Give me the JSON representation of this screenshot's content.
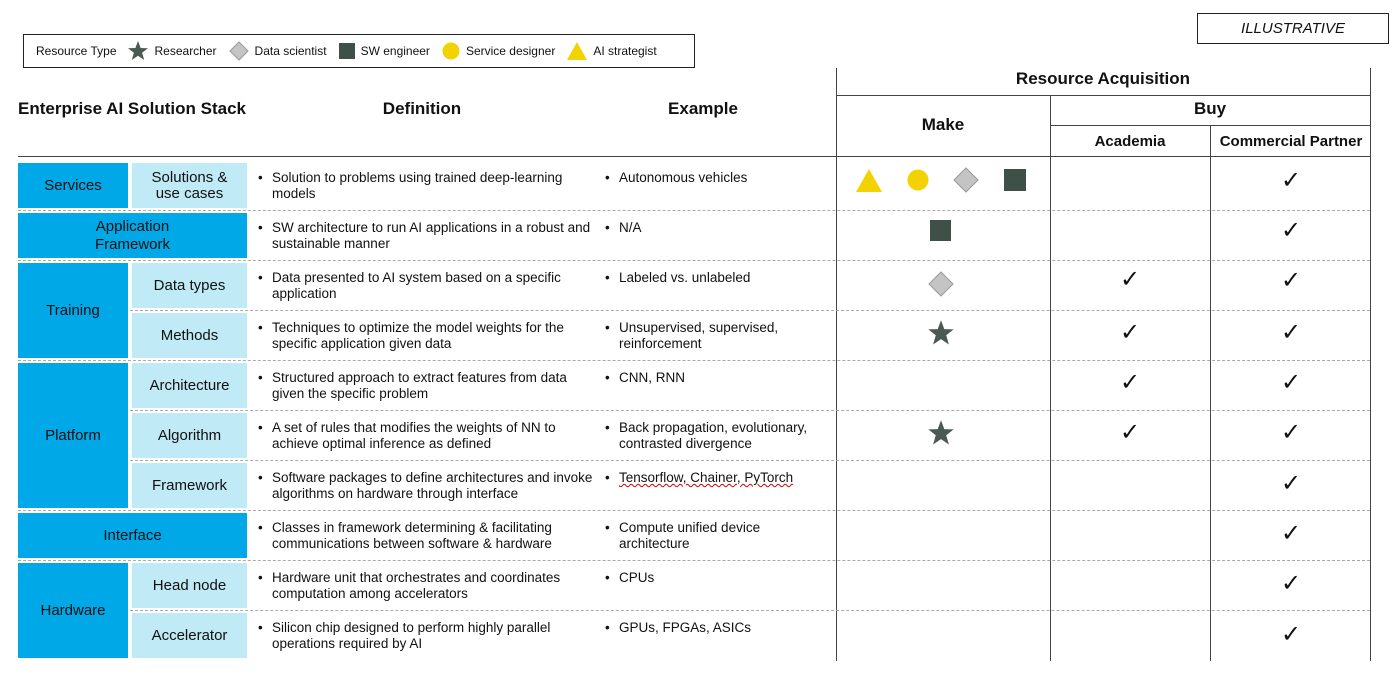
{
  "badge": "ILLUSTRATIVE",
  "legend": {
    "label": "Resource Type",
    "items": [
      {
        "name": "Researcher",
        "shape": "star",
        "color": "#4a5a52"
      },
      {
        "name": "Data scientist",
        "shape": "diamond",
        "color": "#b8b8b8"
      },
      {
        "name": "SW engineer",
        "shape": "square",
        "color": "#3f5048"
      },
      {
        "name": "Service designer",
        "shape": "circle",
        "color": "#f2d200"
      },
      {
        "name": "AI strategist",
        "shape": "triangle",
        "color": "#f2d200"
      }
    ]
  },
  "headers": {
    "stack": "Enterprise AI Solution Stack",
    "definition": "Definition",
    "example": "Example",
    "acquisition": "Resource Acquisition",
    "make": "Make",
    "buy": "Buy",
    "academia": "Academia",
    "commercial": "Commercial Partner"
  },
  "groups": {
    "services": "Services",
    "app_framework": "Application Framework",
    "training": "Training",
    "platform": "Platform",
    "interface": "Interface",
    "hardware": "Hardware"
  },
  "rows": [
    {
      "sub": "Solutions & use cases",
      "definition": "Solution to problems using trained deep-learning models",
      "example": "Autonomous vehicles",
      "make": [
        "triangle",
        "circle",
        "diamond",
        "square"
      ],
      "academia": false,
      "commercial": true
    },
    {
      "sub": "",
      "definition": "SW architecture to run AI applications in a robust and sustainable manner",
      "example": "N/A",
      "make": [
        "square"
      ],
      "academia": false,
      "commercial": true
    },
    {
      "sub": "Data types",
      "definition": "Data presented to AI system based on a specific application",
      "example": "Labeled vs. unlabeled",
      "make": [
        "diamond"
      ],
      "academia": true,
      "commercial": true
    },
    {
      "sub": "Methods",
      "definition": "Techniques to optimize the model weights for the specific application given data",
      "example": "Unsupervised, supervised, reinforcement",
      "make": [
        "star"
      ],
      "academia": true,
      "commercial": true
    },
    {
      "sub": "Architecture",
      "definition": "Structured approach to extract features from data given the specific problem",
      "example": "CNN, RNN",
      "make": [],
      "academia": true,
      "commercial": true
    },
    {
      "sub": "Algorithm",
      "definition": "A set of rules that modifies the weights of NN to achieve optimal inference as defined",
      "example": "Back propagation, evolutionary, contrasted divergence",
      "make": [
        "star"
      ],
      "academia": true,
      "commercial": true
    },
    {
      "sub": "Framework",
      "definition": "Software packages to define architectures and invoke algorithms on hardware through interface",
      "example": "Tensorflow, Chainer, PyTorch",
      "make": [],
      "academia": false,
      "commercial": true
    },
    {
      "sub": "",
      "definition": "Classes in framework determining & facilitating communications between software & hardware",
      "example": "Compute unified device architecture",
      "make": [],
      "academia": false,
      "commercial": true
    },
    {
      "sub": "Head node",
      "definition": "Hardware unit that orchestrates and coordinates computation among accelerators",
      "example": "CPUs",
      "make": [],
      "academia": false,
      "commercial": true
    },
    {
      "sub": "Accelerator",
      "definition": "Silicon chip designed to perform highly parallel operations required by AI",
      "example": "GPUs, FPGAs, ASICs",
      "make": [],
      "academia": false,
      "commercial": true
    }
  ],
  "check_glyph": "✓"
}
